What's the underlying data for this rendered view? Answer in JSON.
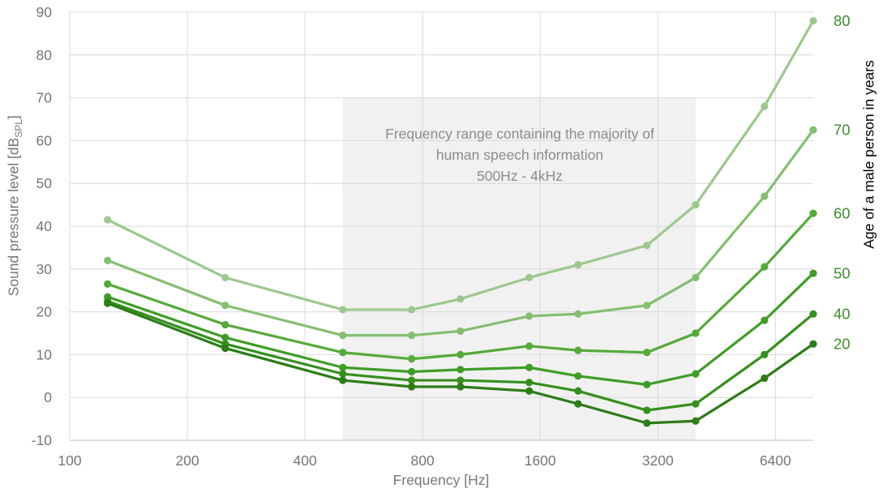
{
  "chart_data": {
    "type": "line",
    "x_scale": "log2",
    "x": [
      125,
      250,
      500,
      750,
      1000,
      1500,
      2000,
      3000,
      4000,
      6000,
      8000
    ],
    "series": [
      {
        "name": "80",
        "color": "#9cc88e",
        "values": [
          41.5,
          28,
          20.5,
          20.5,
          23,
          28,
          31,
          35.5,
          45,
          68,
          88
        ]
      },
      {
        "name": "70",
        "color": "#84bf70",
        "values": [
          32,
          21.5,
          14.5,
          14.5,
          15.5,
          19,
          19.5,
          21.5,
          28,
          47,
          62.5
        ]
      },
      {
        "name": "60",
        "color": "#55aa3a",
        "values": [
          26.5,
          17,
          10.5,
          9,
          10,
          12,
          11,
          10.5,
          15,
          30.5,
          43
        ]
      },
      {
        "name": "50",
        "color": "#3f9d27",
        "values": [
          23.5,
          14,
          7,
          6,
          6.5,
          7,
          5,
          3,
          5.5,
          18,
          29
        ]
      },
      {
        "name": "40",
        "color": "#35901d",
        "values": [
          22.5,
          12.5,
          5.5,
          4,
          4,
          3.5,
          1.5,
          -3,
          -1.5,
          10,
          19.5
        ]
      },
      {
        "name": "20",
        "color": "#2b7d15",
        "values": [
          22,
          11.5,
          4,
          2.5,
          2.5,
          1.5,
          -1.5,
          -6,
          -5.5,
          4.5,
          12.5
        ]
      }
    ],
    "x_ticks": [
      100,
      200,
      400,
      800,
      1600,
      3200,
      6400
    ],
    "y_ticks": [
      90,
      80,
      70,
      60,
      50,
      40,
      30,
      20,
      10,
      0,
      -10
    ],
    "xlim": [
      100,
      8000
    ],
    "ylim": [
      -10,
      90
    ],
    "grid": true,
    "xlabel": "Frequency [Hz]",
    "ylabel_prefix": "Sound pressure level [dB",
    "ylabel_sub": "SPL",
    "ylabel_suffix": "]",
    "right_axis_label": "Age of a male person in years",
    "legend_position": "right-edge-labels",
    "annotation": {
      "line1": "Frequency range containing the majority of",
      "line2": "human speech information",
      "line3": "500Hz - 4kHz",
      "band_x_from": 500,
      "band_x_to": 4000,
      "band_y_top": 70
    }
  },
  "colors": {
    "band_fill": "#f1f1f1",
    "gridline": "#d9d9d9",
    "axis_line": "#bfbfbf",
    "tick_text": "#767676",
    "annotation_text": "#8c8c8c",
    "age_label_text": "#3f8e2d"
  }
}
